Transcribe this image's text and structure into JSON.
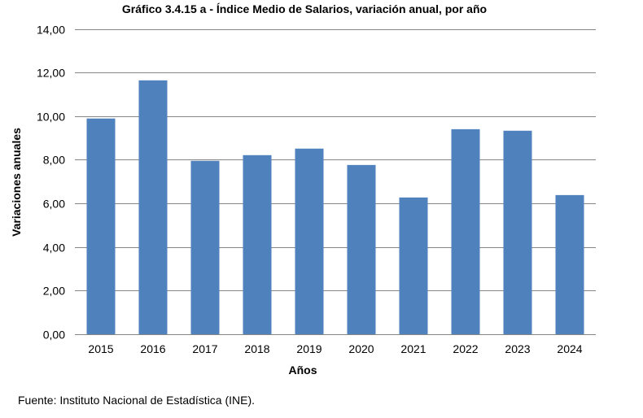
{
  "chart_data": {
    "type": "bar",
    "title": "Gráfico 3.4.15 a - Índice Medio de Salarios, variación anual, por año",
    "xlabel": "Años",
    "ylabel": "Variaciones anuales",
    "categories": [
      "2015",
      "2016",
      "2017",
      "2018",
      "2019",
      "2020",
      "2021",
      "2022",
      "2023",
      "2024"
    ],
    "values": [
      9.89,
      11.64,
      7.95,
      8.21,
      8.51,
      7.76,
      6.27,
      9.4,
      9.33,
      6.38
    ],
    "ylim": [
      0,
      14
    ],
    "yticks": [
      0,
      2,
      4,
      6,
      8,
      10,
      12,
      14
    ],
    "ytick_labels": [
      "0,00",
      "2,00",
      "4,00",
      "6,00",
      "8,00",
      "10,00",
      "12,00",
      "14,00"
    ],
    "grid": true,
    "legend": "none",
    "bar_color": "#4F81BD",
    "grid_color": "#868686"
  },
  "source": "Fuente: Instituto Nacional de Estadística (INE)."
}
